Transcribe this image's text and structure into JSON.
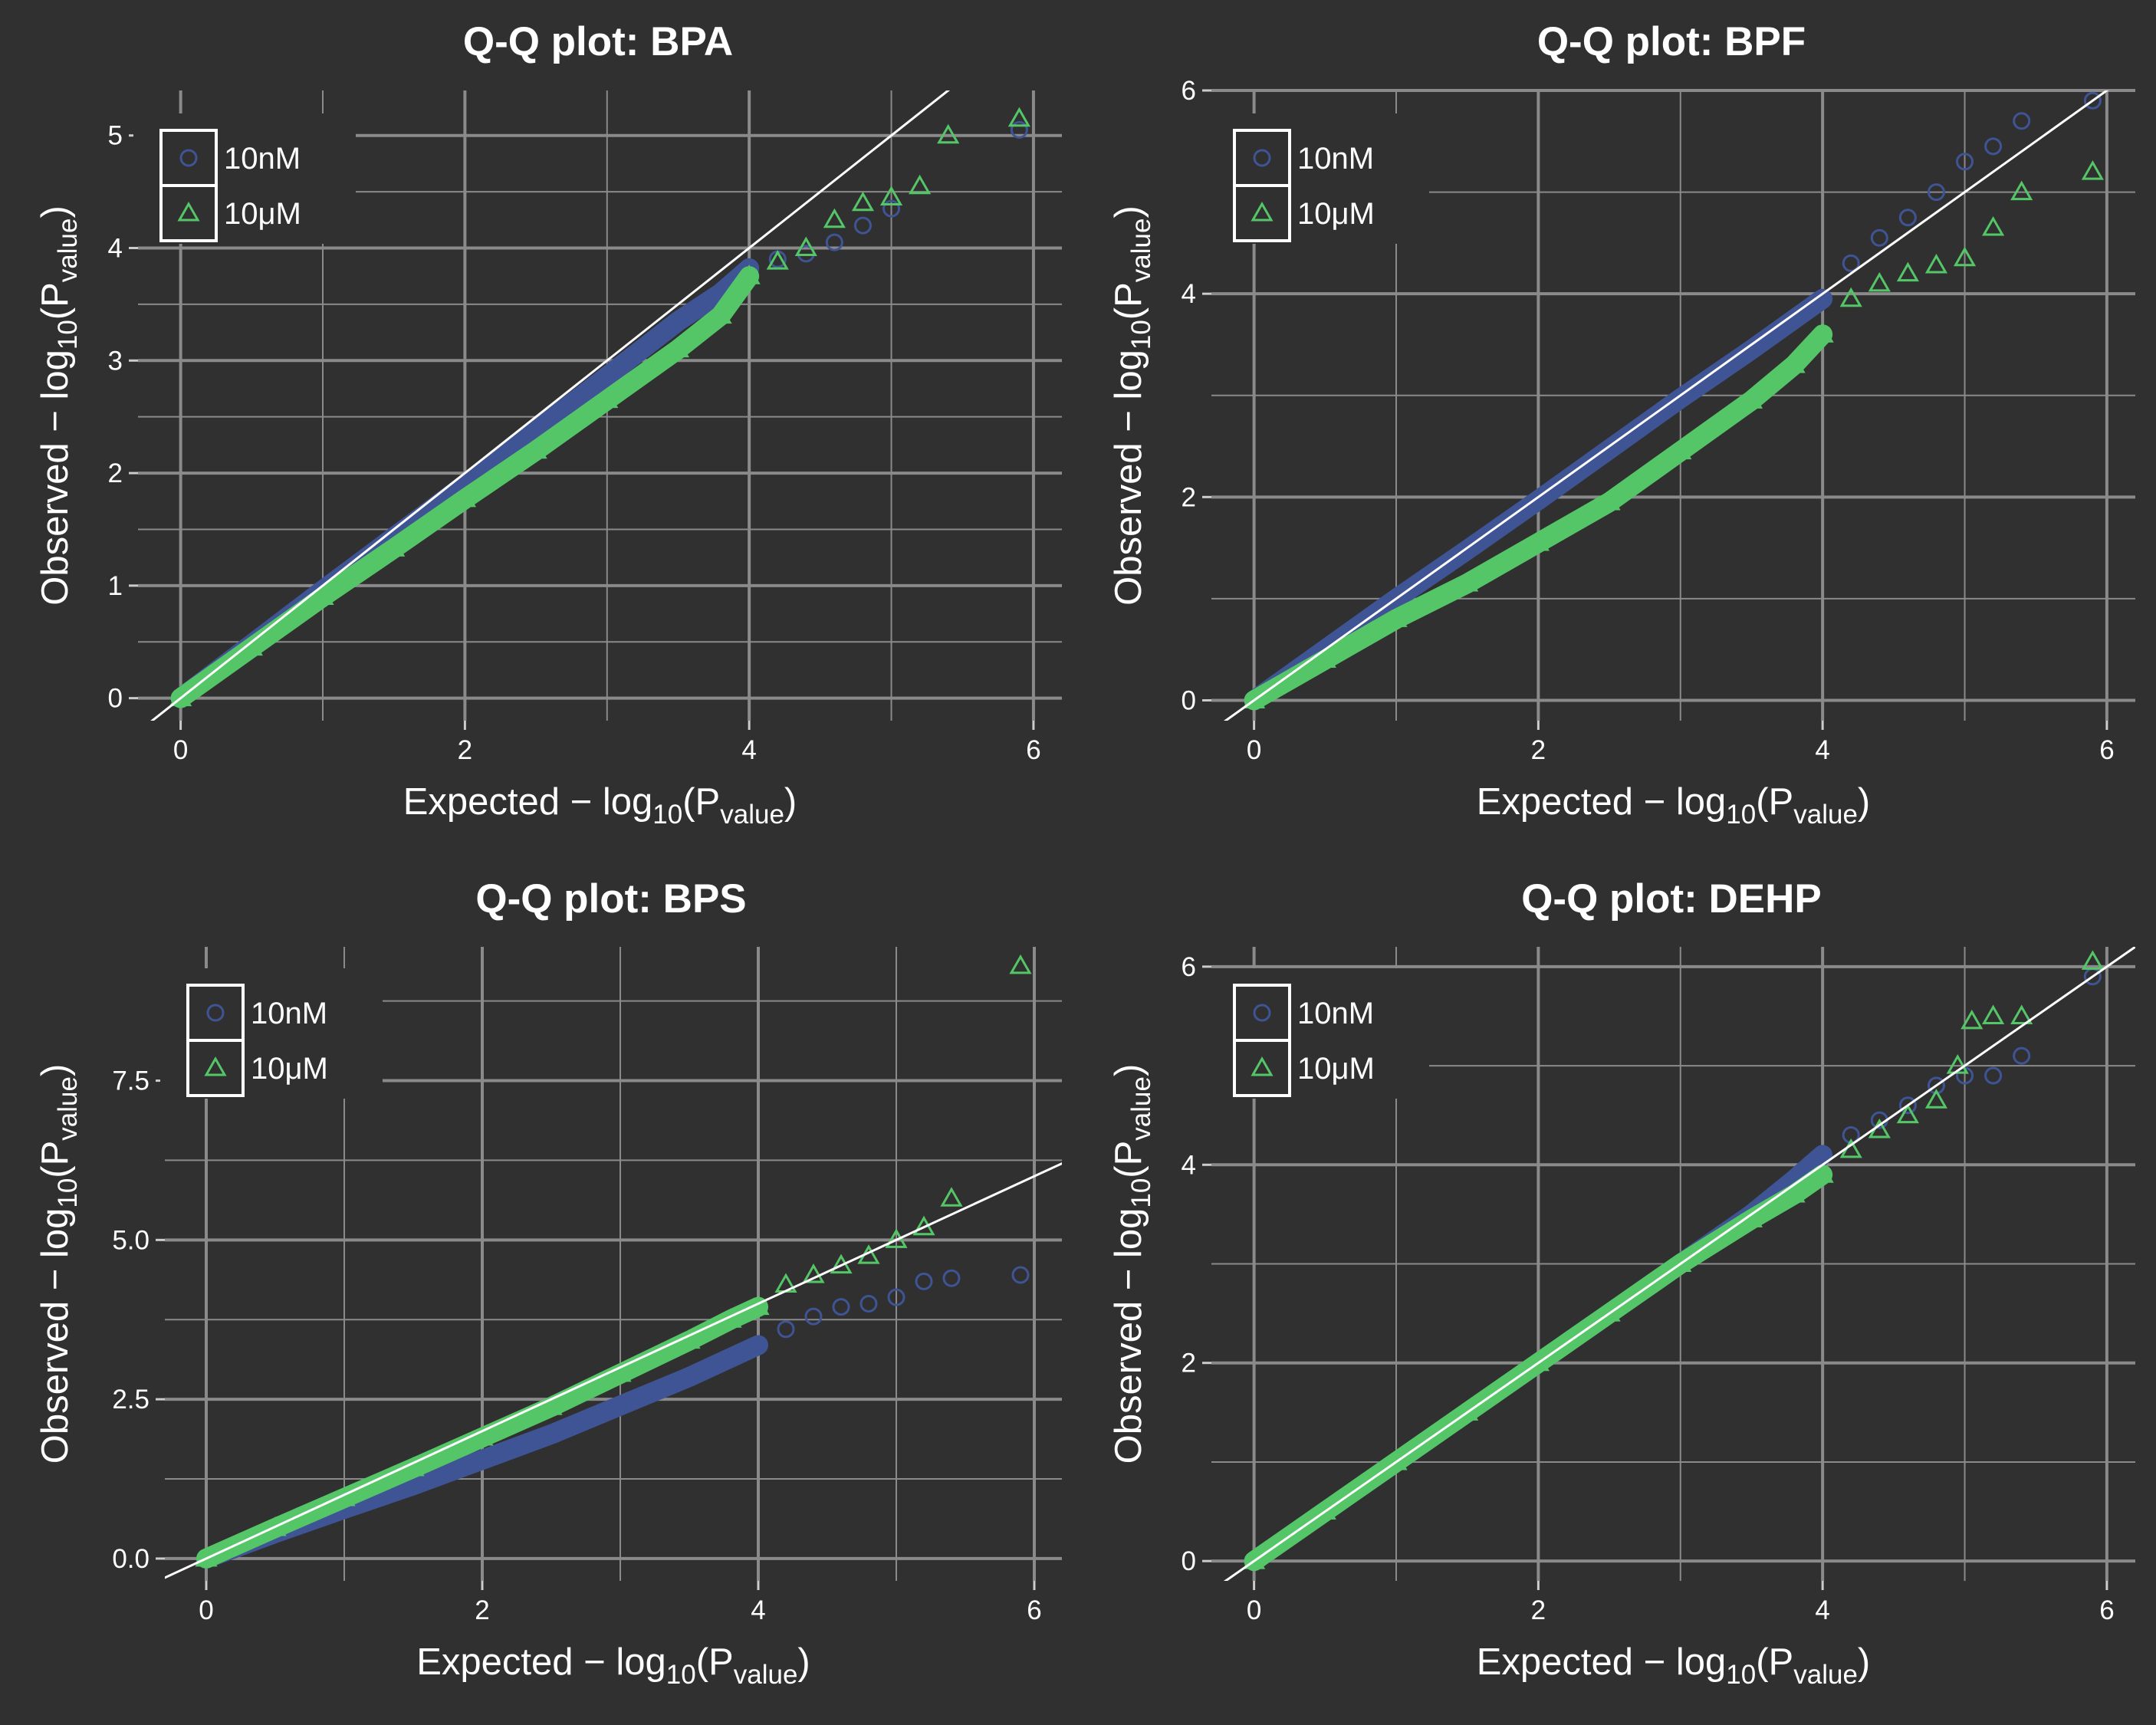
{
  "chart_data": [
    {
      "type": "scatter",
      "title": "Q-Q plot: BPA",
      "xlabel": {
        "main": "Expected",
        "minus": " − log",
        "sub10": "10",
        "paren": "(P",
        "subval": "value",
        "close": ")"
      },
      "ylabel": {
        "main": "Observed",
        "minus": " − log",
        "sub10": "10",
        "paren": "(P",
        "subval": "value",
        "close": ")"
      },
      "xlim": [
        -0.3,
        6.2
      ],
      "ylim": [
        -0.2,
        5.4
      ],
      "xticks": [
        {
          "v": 0,
          "label": "0"
        },
        {
          "v": 2,
          "label": "2"
        },
        {
          "v": 4,
          "label": "4"
        },
        {
          "v": 6,
          "label": "6"
        }
      ],
      "yticks": [
        {
          "v": 0,
          "label": "0"
        },
        {
          "v": 1,
          "label": "1"
        },
        {
          "v": 2,
          "label": "2"
        },
        {
          "v": 3,
          "label": "3"
        },
        {
          "v": 4,
          "label": "4"
        },
        {
          "v": 5,
          "label": "5"
        }
      ],
      "legend": {
        "position": "top-left",
        "entries": [
          "10nM",
          "10μM"
        ]
      },
      "reference_line": "y = x",
      "series": [
        {
          "name": "10nM",
          "marker": "circle",
          "color": "#3f5494",
          "points": [
            [
              0,
              0
            ],
            [
              0.5,
              0.48
            ],
            [
              1,
              0.96
            ],
            [
              1.5,
              1.43
            ],
            [
              2,
              1.9
            ],
            [
              2.5,
              2.38
            ],
            [
              3,
              2.86
            ],
            [
              3.5,
              3.35
            ],
            [
              3.8,
              3.6
            ],
            [
              4,
              3.82
            ],
            [
              4.2,
              3.9
            ],
            [
              4.4,
              3.95
            ],
            [
              4.6,
              4.05
            ],
            [
              4.8,
              4.2
            ],
            [
              5.0,
              4.35
            ],
            [
              5.9,
              5.05
            ]
          ]
        },
        {
          "name": "10μM",
          "marker": "triangle",
          "color": "#55c667",
          "points": [
            [
              0,
              0
            ],
            [
              0.5,
              0.45
            ],
            [
              1,
              0.9
            ],
            [
              1.5,
              1.33
            ],
            [
              2,
              1.77
            ],
            [
              2.5,
              2.2
            ],
            [
              3,
              2.65
            ],
            [
              3.5,
              3.1
            ],
            [
              3.8,
              3.4
            ],
            [
              4,
              3.75
            ],
            [
              4.2,
              3.88
            ],
            [
              4.4,
              4.0
            ],
            [
              4.6,
              4.25
            ],
            [
              4.8,
              4.4
            ],
            [
              5.0,
              4.45
            ],
            [
              5.2,
              4.55
            ],
            [
              5.4,
              5.0
            ],
            [
              5.9,
              5.15
            ]
          ]
        }
      ]
    },
    {
      "type": "scatter",
      "title": "Q-Q plot: BPF",
      "xlabel": {
        "main": "Expected",
        "minus": " − log",
        "sub10": "10",
        "paren": "(P",
        "subval": "value",
        "close": ")"
      },
      "ylabel": {
        "main": "Observed",
        "minus": " − log",
        "sub10": "10",
        "paren": "(P",
        "subval": "value",
        "close": ")"
      },
      "xlim": [
        -0.3,
        6.2
      ],
      "ylim": [
        -0.2,
        6.0
      ],
      "xticks": [
        {
          "v": 0,
          "label": "0"
        },
        {
          "v": 2,
          "label": "2"
        },
        {
          "v": 4,
          "label": "4"
        },
        {
          "v": 6,
          "label": "6"
        }
      ],
      "yticks": [
        {
          "v": 0,
          "label": "0"
        },
        {
          "v": 2,
          "label": "2"
        },
        {
          "v": 4,
          "label": "4"
        },
        {
          "v": 6,
          "label": "6"
        }
      ],
      "legend": {
        "position": "top-left",
        "entries": [
          "10nM",
          "10μM"
        ]
      },
      "reference_line": "y = x",
      "series": [
        {
          "name": "10nM",
          "marker": "circle",
          "color": "#3f5494",
          "points": [
            [
              0,
              0
            ],
            [
              0.5,
              0.5
            ],
            [
              1,
              1
            ],
            [
              1.5,
              1.48
            ],
            [
              2,
              1.97
            ],
            [
              2.5,
              2.47
            ],
            [
              3,
              2.97
            ],
            [
              3.5,
              3.45
            ],
            [
              3.8,
              3.75
            ],
            [
              4,
              3.95
            ],
            [
              4.2,
              4.3
            ],
            [
              4.4,
              4.55
            ],
            [
              4.6,
              4.75
            ],
            [
              4.8,
              5.0
            ],
            [
              5.0,
              5.3
            ],
            [
              5.2,
              5.45
            ],
            [
              5.4,
              5.7
            ],
            [
              5.9,
              5.9
            ]
          ]
        },
        {
          "name": "10μM",
          "marker": "triangle",
          "color": "#55c667",
          "points": [
            [
              0,
              0
            ],
            [
              0.5,
              0.4
            ],
            [
              1,
              0.8
            ],
            [
              1.5,
              1.15
            ],
            [
              2,
              1.55
            ],
            [
              2.5,
              1.95
            ],
            [
              3,
              2.45
            ],
            [
              3.5,
              2.95
            ],
            [
              3.8,
              3.3
            ],
            [
              4,
              3.6
            ],
            [
              4.2,
              3.95
            ],
            [
              4.4,
              4.1
            ],
            [
              4.6,
              4.2
            ],
            [
              4.8,
              4.28
            ],
            [
              5.0,
              4.35
            ],
            [
              5.2,
              4.65
            ],
            [
              5.4,
              5.0
            ],
            [
              5.9,
              5.2
            ]
          ]
        }
      ]
    },
    {
      "type": "scatter",
      "title": "Q-Q plot: BPS",
      "xlabel": {
        "main": "Expected",
        "minus": " − log",
        "sub10": "10",
        "paren": "(P",
        "subval": "value",
        "close": ")"
      },
      "ylabel": {
        "main": "Observed",
        "minus": " − log",
        "sub10": "10",
        "paren": "(P",
        "subval": "value",
        "close": ")"
      },
      "xlim": [
        -0.3,
        6.2
      ],
      "ylim": [
        -0.35,
        9.6
      ],
      "xticks": [
        {
          "v": 0,
          "label": "0"
        },
        {
          "v": 2,
          "label": "2"
        },
        {
          "v": 4,
          "label": "4"
        },
        {
          "v": 6,
          "label": "6"
        }
      ],
      "yticks": [
        {
          "v": 0,
          "label": "0.0"
        },
        {
          "v": 2.5,
          "label": "2.5"
        },
        {
          "v": 5,
          "label": "5.0"
        },
        {
          "v": 7.5,
          "label": "7.5"
        }
      ],
      "legend": {
        "position": "top-left",
        "entries": [
          "10nM",
          "10μM"
        ]
      },
      "reference_line": "y = x",
      "series": [
        {
          "name": "10nM",
          "marker": "circle",
          "color": "#3f5494",
          "points": [
            [
              0,
              0
            ],
            [
              0.5,
              0.4
            ],
            [
              1,
              0.78
            ],
            [
              1.5,
              1.15
            ],
            [
              2,
              1.55
            ],
            [
              2.5,
              1.95
            ],
            [
              3,
              2.4
            ],
            [
              3.5,
              2.85
            ],
            [
              3.8,
              3.15
            ],
            [
              4,
              3.35
            ],
            [
              4.2,
              3.6
            ],
            [
              4.4,
              3.8
            ],
            [
              4.6,
              3.95
            ],
            [
              4.8,
              4.0
            ],
            [
              5.0,
              4.1
            ],
            [
              5.2,
              4.35
            ],
            [
              5.4,
              4.4
            ],
            [
              5.9,
              4.45
            ]
          ]
        },
        {
          "name": "10μM",
          "marker": "triangle",
          "color": "#55c667",
          "points": [
            [
              0,
              0
            ],
            [
              0.5,
              0.48
            ],
            [
              1,
              0.95
            ],
            [
              1.5,
              1.42
            ],
            [
              2,
              1.9
            ],
            [
              2.5,
              2.38
            ],
            [
              3,
              2.9
            ],
            [
              3.5,
              3.42
            ],
            [
              3.8,
              3.75
            ],
            [
              4,
              3.95
            ],
            [
              4.2,
              4.3
            ],
            [
              4.4,
              4.45
            ],
            [
              4.6,
              4.6
            ],
            [
              4.8,
              4.75
            ],
            [
              5.0,
              5.0
            ],
            [
              5.2,
              5.2
            ],
            [
              5.4,
              5.65
            ],
            [
              5.9,
              9.3
            ]
          ]
        }
      ]
    },
    {
      "type": "scatter",
      "title": "Q-Q plot: DEHP",
      "xlabel": {
        "main": "Expected",
        "minus": " − log",
        "sub10": "10",
        "paren": "(P",
        "subval": "value",
        "close": ")"
      },
      "ylabel": {
        "main": "Observed",
        "minus": " − log",
        "sub10": "10",
        "paren": "(P",
        "subval": "value",
        "close": ")"
      },
      "xlim": [
        -0.3,
        6.2
      ],
      "ylim": [
        -0.2,
        6.2
      ],
      "xticks": [
        {
          "v": 0,
          "label": "0"
        },
        {
          "v": 2,
          "label": "2"
        },
        {
          "v": 4,
          "label": "4"
        },
        {
          "v": 6,
          "label": "6"
        }
      ],
      "yticks": [
        {
          "v": 0,
          "label": "0"
        },
        {
          "v": 2,
          "label": "2"
        },
        {
          "v": 4,
          "label": "4"
        },
        {
          "v": 6,
          "label": "6"
        }
      ],
      "legend": {
        "position": "top-left",
        "entries": [
          "10nM",
          "10μM"
        ]
      },
      "reference_line": "y = x",
      "series": [
        {
          "name": "10nM",
          "marker": "circle",
          "color": "#3f5494",
          "points": [
            [
              0,
              0
            ],
            [
              0.5,
              0.5
            ],
            [
              1,
              1
            ],
            [
              1.5,
              1.5
            ],
            [
              2,
              2
            ],
            [
              2.5,
              2.5
            ],
            [
              3,
              3
            ],
            [
              3.5,
              3.5
            ],
            [
              3.8,
              3.85
            ],
            [
              4,
              4.1
            ],
            [
              4.2,
              4.3
            ],
            [
              4.4,
              4.45
            ],
            [
              4.6,
              4.6
            ],
            [
              4.8,
              4.8
            ],
            [
              5.0,
              4.9
            ],
            [
              5.2,
              4.9
            ],
            [
              5.4,
              5.1
            ],
            [
              5.9,
              5.9
            ]
          ]
        },
        {
          "name": "10μM",
          "marker": "triangle",
          "color": "#55c667",
          "points": [
            [
              0,
              0
            ],
            [
              0.5,
              0.5
            ],
            [
              1,
              1
            ],
            [
              1.5,
              1.5
            ],
            [
              2,
              2
            ],
            [
              2.5,
              2.5
            ],
            [
              3,
              3
            ],
            [
              3.5,
              3.45
            ],
            [
              3.8,
              3.7
            ],
            [
              4,
              3.9
            ],
            [
              4.2,
              4.15
            ],
            [
              4.4,
              4.35
            ],
            [
              4.6,
              4.5
            ],
            [
              4.8,
              4.65
            ],
            [
              4.95,
              5.0
            ],
            [
              5.05,
              5.45
            ],
            [
              5.2,
              5.5
            ],
            [
              5.4,
              5.5
            ],
            [
              5.9,
              6.05
            ]
          ]
        }
      ]
    }
  ]
}
